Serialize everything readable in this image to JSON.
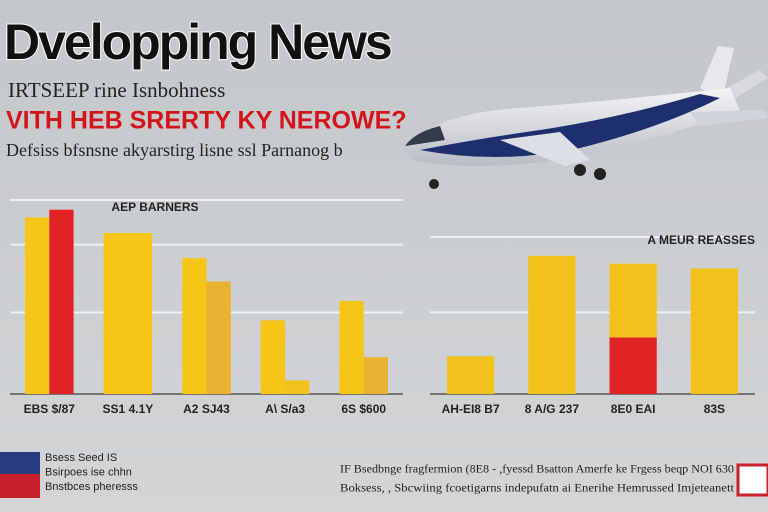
{
  "header": {
    "title": "Dvelopping News",
    "subtitle": "IRTSEEP rine Isnbohness",
    "headline": "VITH HEB SRERTY KY  NEROWE?",
    "dek": "Defsiss bfsnsne akyarstirg lisne ssl  Parnanog  b"
  },
  "chart_data": [
    {
      "type": "bar",
      "title": "AEP BARNERS",
      "categories": [
        "EBS $/87",
        "SS1 4.1Y",
        "A2 SJ43",
        "A\\ S/a3",
        "6S $600"
      ],
      "series": [
        {
          "color": "#f5c518",
          "values": [
            91,
            83,
            70,
            38,
            48
          ]
        },
        {
          "colors": [
            "#e02424",
            null,
            "#eab232",
            "#f2c21c",
            "#eab232"
          ],
          "values": [
            95,
            null,
            58,
            7,
            19
          ]
        }
      ],
      "ylim": [
        0,
        100
      ],
      "gridlines": [
        42,
        77,
        100
      ],
      "stacked": false
    },
    {
      "type": "bar",
      "title": "A MEUR REASSES",
      "categories": [
        "AH-EI8 B7",
        "8 A/G 237",
        "8E0 EAI",
        "83S"
      ],
      "series": [
        {
          "color": "#e02424",
          "values": [
            null,
            null,
            36,
            null
          ]
        },
        {
          "color": "#f2c21c",
          "values": [
            24,
            88,
            47,
            80
          ]
        }
      ],
      "ylim": [
        0,
        100
      ],
      "gridlines": [
        52,
        100
      ],
      "stacked": true
    }
  ],
  "footer": {
    "left": [
      "Bsess Seed IS",
      "Bsirpoes ise chhn",
      "Bnstbces pheresss"
    ],
    "right": [
      "IF Bsedbnge fragfermion (8E8 - ,fyessd Bsatton Amerfe ke Frgess beqp NOI 630",
      "Boksess, , Sbcwiing fcoetigarns indepufatn ai Enerihe Hemrussed Imjeteanett"
    ]
  }
}
